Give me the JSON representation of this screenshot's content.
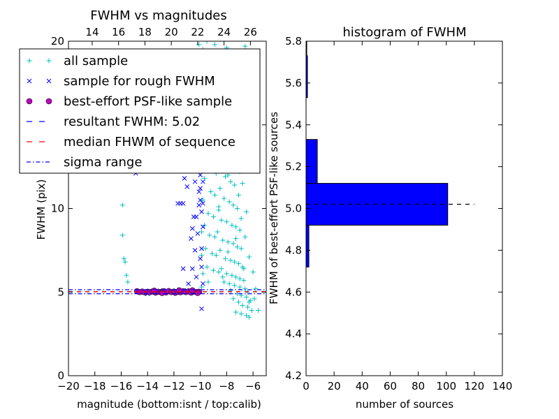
{
  "chart_data": [
    {
      "type": "scatter",
      "title": "FWHM vs magnitudes",
      "xlabel": "magnitude (bottom:isnt / top:calib)",
      "ylabel": "FWHM (pix)",
      "xlim": [
        -20,
        -5
      ],
      "ylim": [
        0,
        20
      ],
      "x_ticks": [
        -20,
        -18,
        -16,
        -14,
        -12,
        -10,
        -8,
        -6
      ],
      "x_tick_labels": [
        "−20",
        "−18",
        "−16",
        "−14",
        "−12",
        "−10",
        "−8",
        "−6"
      ],
      "y_ticks": [
        0,
        5,
        10,
        15,
        20
      ],
      "y_tick_labels": [
        "0",
        "5",
        "10",
        "15",
        "20"
      ],
      "top_axis": {
        "label_offset": 32.2,
        "ticks": [
          14,
          16,
          18,
          20,
          22,
          24,
          26
        ],
        "tick_labels": [
          "14",
          "16",
          "18",
          "20",
          "22",
          "24",
          "26"
        ]
      },
      "legend": {
        "placement": "top-left",
        "entries": [
          {
            "label": "all sample",
            "marker": "+",
            "color": "#00bfbf"
          },
          {
            "label": "sample for rough FWHM",
            "marker": "x",
            "color": "#0000ff"
          },
          {
            "label": "best-effort PSF-like sample",
            "marker": "o",
            "color": "#bf00bf"
          },
          {
            "label": "resultant FWHM: 5.02",
            "line": "dashed",
            "color": "#0000ff"
          },
          {
            "label": "median FHWM of sequence",
            "line": "dashed",
            "color": "#ff0000"
          },
          {
            "label": "sigma range",
            "line": "dashdot",
            "color": "#0000ff"
          }
        ]
      },
      "series": [
        {
          "name": "all sample",
          "marker": "+",
          "color": "#00bfbf",
          "points": [
            [
              -15.9,
              10.2
            ],
            [
              -15.9,
              8.4
            ],
            [
              -15.8,
              7.0
            ],
            [
              -15.7,
              6.8
            ],
            [
              -15.6,
              6.0
            ],
            [
              -15.5,
              5.6
            ],
            [
              -13.0,
              17.5
            ],
            [
              -12.8,
              13.0
            ],
            [
              -13.3,
              19.0
            ],
            [
              -10.1,
              19.8
            ],
            [
              -9.8,
              19.5
            ],
            [
              -9.5,
              20.0
            ],
            [
              -8.9,
              19.8
            ],
            [
              -8.0,
              19.6
            ],
            [
              -6.6,
              19.7
            ],
            [
              -9.5,
              18.2
            ],
            [
              -9.3,
              17.6
            ],
            [
              -9.0,
              16.9
            ],
            [
              -8.8,
              16.2
            ],
            [
              -8.6,
              15.8
            ],
            [
              -8.4,
              15.3
            ],
            [
              -8.2,
              15.0
            ],
            [
              -8.0,
              14.7
            ],
            [
              -8.7,
              14.2
            ],
            [
              -9.1,
              13.7
            ],
            [
              -8.5,
              13.4
            ],
            [
              -7.9,
              13.2
            ],
            [
              -7.6,
              12.9
            ],
            [
              -8.3,
              12.7
            ],
            [
              -9.0,
              12.5
            ],
            [
              -8.8,
              12.1
            ],
            [
              -8.1,
              11.9
            ],
            [
              -7.7,
              11.6
            ],
            [
              -7.4,
              11.4
            ],
            [
              -8.5,
              11.2
            ],
            [
              -9.2,
              11.0
            ],
            [
              -8.9,
              10.8
            ],
            [
              -8.2,
              10.6
            ],
            [
              -7.8,
              10.4
            ],
            [
              -7.5,
              10.2
            ],
            [
              -7.2,
              10.0
            ],
            [
              -8.6,
              9.9
            ],
            [
              -9.4,
              9.7
            ],
            [
              -9.0,
              9.5
            ],
            [
              -8.4,
              9.3
            ],
            [
              -8.0,
              9.2
            ],
            [
              -7.6,
              9.0
            ],
            [
              -7.3,
              8.9
            ],
            [
              -7.0,
              8.7
            ],
            [
              -8.7,
              8.6
            ],
            [
              -9.3,
              8.4
            ],
            [
              -8.9,
              8.3
            ],
            [
              -8.3,
              8.1
            ],
            [
              -7.9,
              8.0
            ],
            [
              -7.5,
              7.9
            ],
            [
              -7.2,
              7.7
            ],
            [
              -6.9,
              7.6
            ],
            [
              -8.5,
              7.5
            ],
            [
              -9.1,
              7.3
            ],
            [
              -8.8,
              7.2
            ],
            [
              -8.1,
              7.0
            ],
            [
              -7.7,
              6.9
            ],
            [
              -7.4,
              6.8
            ],
            [
              -7.1,
              6.7
            ],
            [
              -6.8,
              6.5
            ],
            [
              -8.4,
              6.4
            ],
            [
              -9.0,
              6.3
            ],
            [
              -8.6,
              6.2
            ],
            [
              -8.0,
              6.1
            ],
            [
              -7.6,
              6.0
            ],
            [
              -7.3,
              5.9
            ],
            [
              -7.0,
              5.8
            ],
            [
              -6.7,
              5.7
            ],
            [
              -8.2,
              5.6
            ],
            [
              -7.8,
              5.5
            ],
            [
              -7.4,
              5.4
            ],
            [
              -7.0,
              5.3
            ],
            [
              -6.6,
              5.2
            ],
            [
              -6.4,
              5.0
            ],
            [
              -7.2,
              4.9
            ],
            [
              -6.9,
              4.8
            ],
            [
              -6.5,
              4.7
            ],
            [
              -6.2,
              4.5
            ],
            [
              -7.1,
              4.4
            ],
            [
              -6.8,
              4.2
            ],
            [
              -6.4,
              4.1
            ],
            [
              -6.1,
              3.9
            ],
            [
              -7.3,
              3.8
            ],
            [
              -6.9,
              3.7
            ],
            [
              -6.5,
              3.6
            ],
            [
              -6.3,
              3.5
            ],
            [
              -5.9,
              4.6
            ],
            [
              -5.8,
              5.2
            ],
            [
              -5.6,
              3.9
            ],
            [
              -6.0,
              6.2
            ],
            [
              -6.3,
              7.1
            ],
            [
              -6.6,
              8.3
            ],
            [
              -6.9,
              9.4
            ],
            [
              -7.1,
              10.8
            ],
            [
              -7.0,
              12.2
            ],
            [
              -7.3,
              13.6
            ],
            [
              -7.5,
              15.0
            ],
            [
              -7.8,
              16.5
            ],
            [
              -8.3,
              17.4
            ],
            [
              -8.7,
              18.6
            ],
            [
              -9.4,
              14.8
            ],
            [
              -9.6,
              13.2
            ],
            [
              -9.7,
              11.8
            ],
            [
              -9.8,
              10.5
            ],
            [
              -9.7,
              9.0
            ],
            [
              -9.6,
              7.6
            ],
            [
              -9.5,
              6.5
            ],
            [
              -9.4,
              5.6
            ],
            [
              -9.9,
              5.3
            ],
            [
              -9.8,
              6.1
            ],
            [
              -9.9,
              7.2
            ],
            [
              -9.9,
              8.6
            ],
            [
              -7.8,
              14.0
            ],
            [
              -8.4,
              16.8
            ],
            [
              -8.9,
              17.3
            ],
            [
              -9.2,
              15.6
            ],
            [
              -7.9,
              12.0
            ],
            [
              -8.6,
              10.1
            ],
            [
              -7.3,
              8.2
            ],
            [
              -7.9,
              7.4
            ],
            [
              -8.3,
              5.9
            ],
            [
              -6.7,
              6.4
            ],
            [
              -6.5,
              9.8
            ],
            [
              -6.8,
              11.5
            ],
            [
              -7.6,
              17.8
            ],
            [
              -8.1,
              18.9
            ],
            [
              -9.0,
              18.0
            ],
            [
              -7.7,
              5.1
            ],
            [
              -6.3,
              4.4
            ],
            [
              -7.5,
              4.6
            ]
          ]
        },
        {
          "name": "sample for rough FWHM",
          "marker": "x",
          "color": "#0000ff",
          "points": [
            [
              -14.9,
              12.1
            ],
            [
              -13.6,
              13.6
            ],
            [
              -13.9,
              15.0
            ],
            [
              -12.0,
              13.0
            ],
            [
              -11.8,
              12.5
            ],
            [
              -11.7,
              10.3
            ],
            [
              -11.5,
              10.3
            ],
            [
              -11.3,
              10.3
            ],
            [
              -11.2,
              11.8
            ],
            [
              -11.0,
              11.3
            ],
            [
              -10.9,
              12.3
            ],
            [
              -10.8,
              13.3
            ],
            [
              -10.7,
              8.2
            ],
            [
              -10.6,
              8.8
            ],
            [
              -10.5,
              9.5
            ],
            [
              -10.4,
              11.6
            ],
            [
              -10.3,
              13.5
            ],
            [
              -10.3,
              9.5
            ],
            [
              -10.2,
              8.5
            ],
            [
              -10.1,
              10.2
            ],
            [
              -10.1,
              11.0
            ],
            [
              -10.0,
              12.0
            ],
            [
              -10.0,
              11.2
            ],
            [
              -10.0,
              10.5
            ],
            [
              -9.9,
              12.3
            ],
            [
              -9.9,
              9.8
            ],
            [
              -9.9,
              7.6
            ],
            [
              -9.8,
              11.6
            ],
            [
              -9.8,
              10.3
            ],
            [
              -9.8,
              8.9
            ],
            [
              -9.9,
              6.5
            ],
            [
              -10.0,
              7.0
            ],
            [
              -10.3,
              5.9
            ],
            [
              -10.4,
              7.5
            ],
            [
              -10.6,
              6.4
            ],
            [
              -11.3,
              6.4
            ],
            [
              -10.9,
              5.5
            ],
            [
              -12.0,
              5.0
            ],
            [
              -11.0,
              5.1
            ],
            [
              -12.8,
              5.1
            ],
            [
              -13.4,
              5.0
            ],
            [
              -14.0,
              4.9
            ],
            [
              -9.9,
              4.0
            ],
            [
              -10.2,
              5.0
            ],
            [
              -9.8,
              5.5
            ]
          ]
        },
        {
          "name": "best-effort PSF-like sample",
          "marker": "o",
          "color": "#bf00bf",
          "points": [
            [
              -14.8,
              5.05
            ],
            [
              -14.6,
              5.0
            ],
            [
              -14.4,
              5.03
            ],
            [
              -14.2,
              4.98
            ],
            [
              -14.0,
              5.02
            ],
            [
              -13.8,
              5.0
            ],
            [
              -13.6,
              5.04
            ],
            [
              -13.4,
              4.97
            ],
            [
              -13.2,
              5.02
            ],
            [
              -13.0,
              5.0
            ],
            [
              -12.8,
              5.05
            ],
            [
              -12.6,
              4.98
            ],
            [
              -12.4,
              5.06
            ],
            [
              -12.2,
              5.0
            ],
            [
              -12.0,
              5.03
            ],
            [
              -11.9,
              4.96
            ],
            [
              -11.7,
              5.02
            ],
            [
              -11.5,
              4.99
            ],
            [
              -11.3,
              5.05
            ],
            [
              -11.1,
              5.0
            ],
            [
              -10.9,
              5.04
            ],
            [
              -10.7,
              4.97
            ],
            [
              -10.5,
              5.03
            ],
            [
              -10.3,
              5.0
            ],
            [
              -10.1,
              5.02
            ],
            [
              -11.6,
              5.1
            ],
            [
              -12.9,
              4.95
            ],
            [
              -13.5,
              5.08
            ],
            [
              -10.6,
              5.1
            ],
            [
              -10.2,
              4.95
            ]
          ]
        }
      ],
      "lines": [
        {
          "name": "resultant FWHM: 5.02",
          "y": 5.02,
          "style": "dashed",
          "color": "#000000"
        },
        {
          "name": "median FHWM of sequence",
          "y": 5.02,
          "style": "dashed",
          "color": "#ff0000"
        },
        {
          "name": "sigma range",
          "y": 4.9,
          "style": "dashdot",
          "color": "#0000ff"
        },
        {
          "name": "sigma range",
          "y": 5.14,
          "style": "dashdot",
          "color": "#0000ff"
        }
      ],
      "grid": false
    },
    {
      "type": "bar",
      "orientation": "horizontal",
      "title": "histogram of FWHM",
      "xlabel": "number of sources",
      "ylabel": "FWHM of best-effort PSF-like sources",
      "xlim": [
        0,
        140
      ],
      "ylim": [
        4.2,
        5.8
      ],
      "x_ticks": [
        0,
        20,
        40,
        60,
        80,
        100,
        120,
        140
      ],
      "x_tick_labels": [
        "0",
        "20",
        "40",
        "60",
        "80",
        "100",
        "120",
        "140"
      ],
      "y_ticks": [
        4.2,
        4.4,
        4.6,
        4.8,
        5.0,
        5.2,
        5.4,
        5.6,
        5.8
      ],
      "y_tick_labels": [
        "4.2",
        "4.4",
        "4.6",
        "4.8",
        "5.0",
        "5.2",
        "5.4",
        "5.6",
        "5.8"
      ],
      "bar_color": "#0000ff",
      "bins": [
        {
          "low": 4.72,
          "high": 4.92,
          "count": 2
        },
        {
          "low": 4.92,
          "high": 5.12,
          "count": 101
        },
        {
          "low": 5.12,
          "high": 5.33,
          "count": 8
        },
        {
          "low": 5.33,
          "high": 5.53,
          "count": 0
        },
        {
          "low": 5.53,
          "high": 5.73,
          "count": 1
        },
        {
          "low": 5.73,
          "high": 5.8,
          "count": 0.5
        }
      ],
      "lines": [
        {
          "name": "resultant FWHM",
          "y": 5.02,
          "x_range": [
            0,
            120
          ],
          "style": "dashed",
          "color": "#000000"
        }
      ],
      "grid": false
    }
  ]
}
